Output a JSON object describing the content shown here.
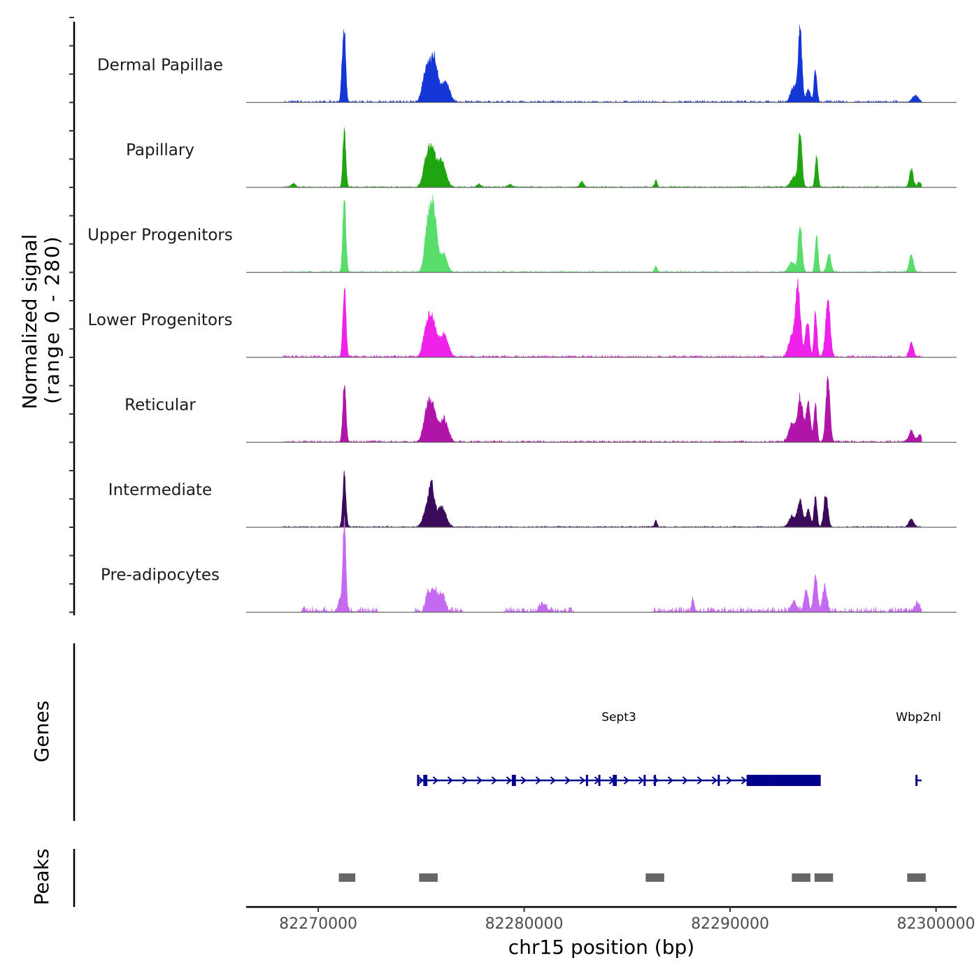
{
  "chart_data": {
    "type": "area",
    "title": "",
    "ylabel_line1": "Normalized signal",
    "ylabel_line2": "(range 0 - 280)",
    "genes_label": "Genes",
    "peaks_label": "Peaks",
    "xlabel": "chr15 position (bp)",
    "chromosome": "chr15",
    "x_range": [
      82266500,
      82301000
    ],
    "y_range": [
      0,
      280
    ],
    "x_ticks": [
      82270000,
      82280000,
      82290000,
      82300000
    ],
    "x_tick_labels": [
      "82270000",
      "82280000",
      "82290000",
      "82300000"
    ],
    "signal_extent": [
      82268300,
      82299300
    ],
    "tracks": [
      {
        "name": "Dermal Papillae",
        "color": "#1436d6",
        "peaks": [
          [
            82271270,
            274,
            70
          ],
          [
            82271150,
            90,
            50
          ],
          [
            82275600,
            185,
            200
          ],
          [
            82275200,
            110,
            150
          ],
          [
            82276200,
            80,
            180
          ],
          [
            82293400,
            285,
            90
          ],
          [
            82293100,
            60,
            150
          ],
          [
            82294150,
            130,
            70
          ],
          [
            82293800,
            50,
            100
          ],
          [
            82299000,
            25,
            150
          ]
        ],
        "noise": 8,
        "noise_ranges": [
          [
            82268300,
            82299300
          ]
        ]
      },
      {
        "name": "Papillary",
        "color": "#1ea50f",
        "peaks": [
          [
            82271270,
            226,
            70
          ],
          [
            82275500,
            150,
            200
          ],
          [
            82276000,
            100,
            200
          ],
          [
            82275200,
            60,
            150
          ],
          [
            82293400,
            212,
            90
          ],
          [
            82294200,
            125,
            70
          ],
          [
            82293100,
            40,
            150
          ],
          [
            82298800,
            70,
            90
          ],
          [
            82286400,
            28,
            60
          ],
          [
            82268800,
            15,
            100
          ],
          [
            82282800,
            20,
            100
          ],
          [
            82277800,
            12,
            100
          ],
          [
            82279300,
            10,
            100
          ],
          [
            82299200,
            20,
            100
          ]
        ],
        "noise": 5,
        "noise_ranges": [
          [
            82268300,
            82299300
          ]
        ]
      },
      {
        "name": "Upper Progenitors",
        "color": "#59dd6b",
        "peaks": [
          [
            82271270,
            290,
            75
          ],
          [
            82275580,
            250,
            170
          ],
          [
            82275300,
            140,
            150
          ],
          [
            82276100,
            70,
            160
          ],
          [
            82293400,
            190,
            90
          ],
          [
            82294200,
            150,
            70
          ],
          [
            82294800,
            70,
            100
          ],
          [
            82298800,
            70,
            100
          ],
          [
            82286400,
            25,
            60
          ],
          [
            82293000,
            40,
            150
          ]
        ],
        "noise": 5,
        "noise_ranges": [
          [
            82268300,
            82299300
          ]
        ]
      },
      {
        "name": "Lower Progenitors",
        "color": "#ee22ea",
        "peaks": [
          [
            82271270,
            282,
            75
          ],
          [
            82275500,
            165,
            200
          ],
          [
            82276100,
            90,
            200
          ],
          [
            82275200,
            60,
            150
          ],
          [
            82293300,
            270,
            120
          ],
          [
            82293750,
            140,
            100
          ],
          [
            82294150,
            180,
            70
          ],
          [
            82294750,
            225,
            110
          ],
          [
            82293000,
            80,
            150
          ],
          [
            82298800,
            55,
            100
          ]
        ],
        "noise": 8,
        "noise_ranges": [
          [
            82268300,
            82299300
          ]
        ]
      },
      {
        "name": "Reticular",
        "color": "#b014a8",
        "peaks": [
          [
            82271270,
            233,
            75
          ],
          [
            82275500,
            165,
            200
          ],
          [
            82276100,
            90,
            200
          ],
          [
            82275200,
            60,
            150
          ],
          [
            82293400,
            180,
            130
          ],
          [
            82293800,
            150,
            110
          ],
          [
            82294150,
            150,
            70
          ],
          [
            82294750,
            248,
            100
          ],
          [
            82293000,
            70,
            150
          ],
          [
            82298800,
            45,
            120
          ],
          [
            82299200,
            30,
            100
          ]
        ],
        "noise": 7,
        "noise_ranges": [
          [
            82268300,
            82299300
          ]
        ]
      },
      {
        "name": "Intermediate",
        "color": "#3c0a5a",
        "peaks": [
          [
            82271270,
            210,
            75
          ],
          [
            82275500,
            160,
            150
          ],
          [
            82276000,
            80,
            200
          ],
          [
            82275200,
            50,
            150
          ],
          [
            82293400,
            100,
            130
          ],
          [
            82293800,
            70,
            100
          ],
          [
            82294150,
            125,
            70
          ],
          [
            82294650,
            125,
            100
          ],
          [
            82293000,
            40,
            150
          ],
          [
            82298800,
            30,
            120
          ],
          [
            82286400,
            25,
            60
          ]
        ],
        "noise": 5,
        "noise_ranges": [
          [
            82268300,
            82299300
          ]
        ]
      },
      {
        "name": "Pre-adipocytes",
        "color": "#c46af0",
        "peaks": [
          [
            82271270,
            358,
            70
          ],
          [
            82271050,
            50,
            80
          ],
          [
            82275600,
            90,
            150
          ],
          [
            82276000,
            70,
            150
          ],
          [
            82275300,
            60,
            100
          ],
          [
            82294150,
            145,
            90
          ],
          [
            82293700,
            80,
            100
          ],
          [
            82294600,
            100,
            100
          ],
          [
            82293100,
            40,
            120
          ],
          [
            82288200,
            50,
            60
          ],
          [
            82280900,
            30,
            150
          ],
          [
            82269300,
            20,
            50
          ],
          [
            82299100,
            35,
            100
          ]
        ],
        "noise": 20,
        "noise_ranges": [
          [
            82269200,
            82272900
          ],
          [
            82274700,
            82277000
          ],
          [
            82279000,
            82282400
          ],
          [
            82286200,
            82299300
          ]
        ]
      }
    ],
    "genes": [
      {
        "name": "Sept3",
        "start": 82274800,
        "end": 82294400,
        "strand": "+",
        "color": "#00008b",
        "exons": [
          [
            82274800,
            82274900
          ],
          [
            82275100,
            82275300
          ],
          [
            82279400,
            82279600
          ],
          [
            82283000,
            82283100
          ],
          [
            82283600,
            82283700
          ],
          [
            82284300,
            82284500
          ],
          [
            82285800,
            82285900
          ],
          [
            82286300,
            82286400
          ],
          [
            82289400,
            82289500
          ],
          [
            82290800,
            82292100
          ]
        ],
        "thick": [
          [
            82292100,
            82294400
          ]
        ]
      },
      {
        "name": "Wbp2nl",
        "start": 82299000,
        "end": 82299300,
        "strand": "+",
        "color": "#00008b",
        "exons": [
          [
            82299000,
            82299100
          ]
        ],
        "thick": []
      }
    ],
    "peaks": [
      [
        82271000,
        82271800
      ],
      [
        82274900,
        82275800
      ],
      [
        82285900,
        82286800
      ],
      [
        82293000,
        82293900
      ],
      [
        82294100,
        82295000
      ],
      [
        82298600,
        82299500
      ]
    ],
    "peak_color": "#666666"
  }
}
